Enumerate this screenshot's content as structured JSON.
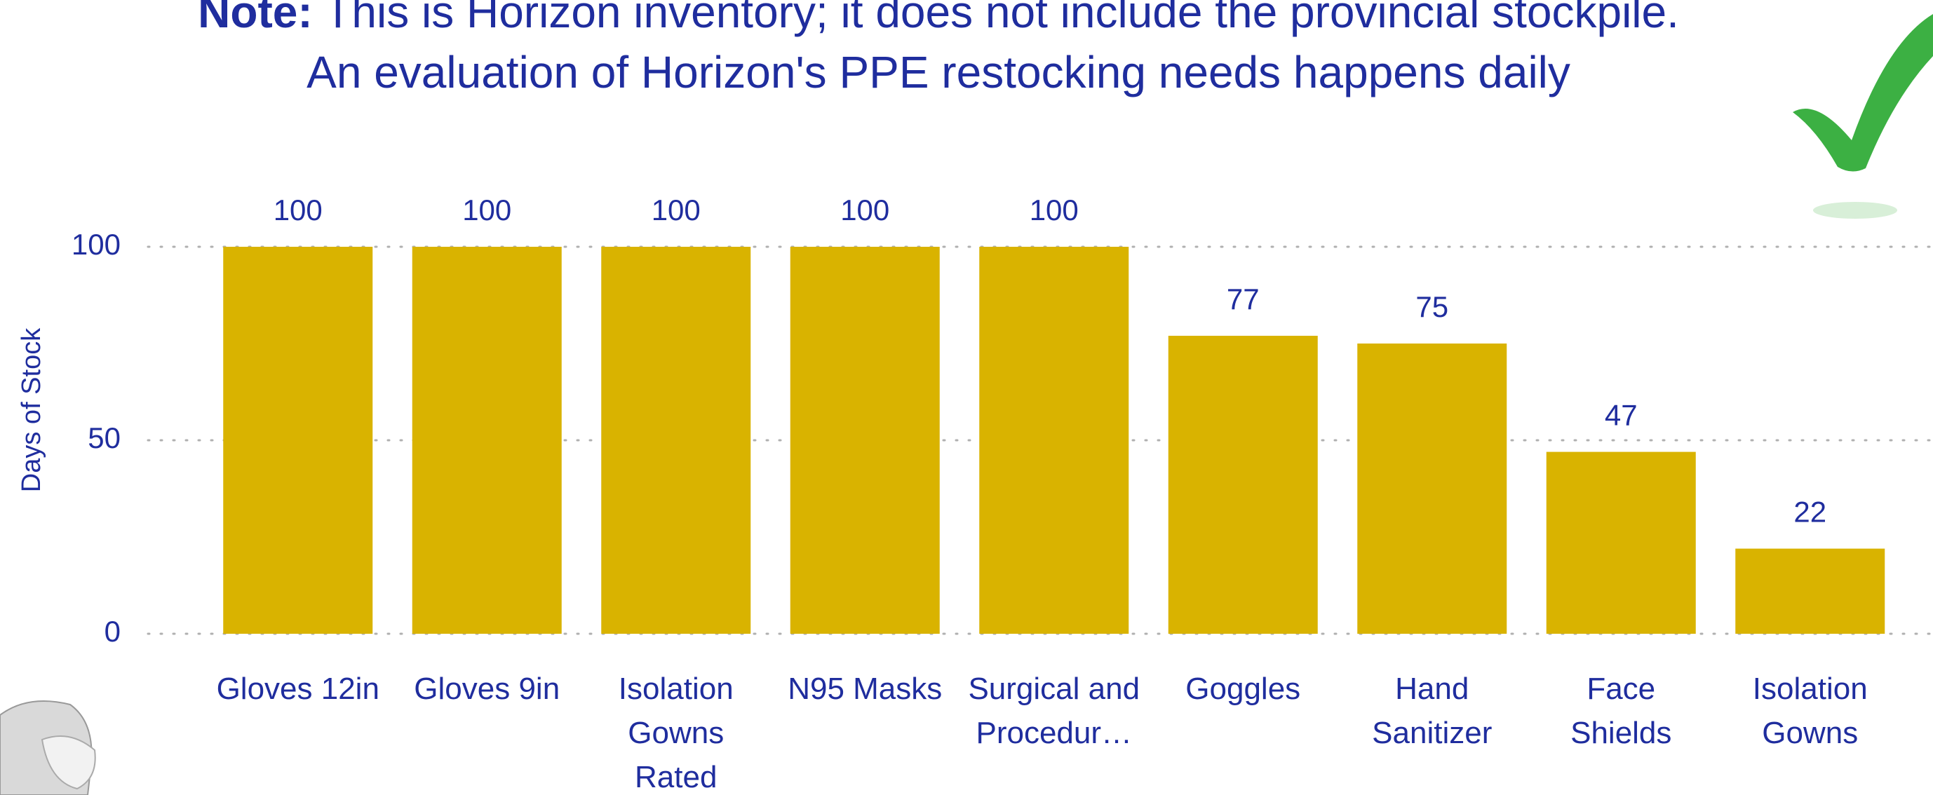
{
  "chart_data": {
    "type": "bar",
    "note_label": "Note:",
    "note_text": "This is Horizon inventory; it does not include the provincial stockpile.",
    "subtitle": "An evaluation of Horizon's PPE restocking needs happens daily",
    "y_label": "Days of Stock",
    "categories": [
      "Gloves 12in",
      "Gloves 9in",
      "Isolation Gowns Rated",
      "N95 Masks",
      "Surgical and Procedur…",
      "Goggles",
      "Hand Sanitizer",
      "Face Shields",
      "Isolation Gowns"
    ],
    "values": [
      100,
      100,
      100,
      100,
      100,
      77,
      75,
      47,
      22
    ],
    "color": "#d9b300",
    "ylim": [
      0,
      100
    ],
    "yticks": [
      0,
      50,
      100
    ],
    "grid": true
  }
}
